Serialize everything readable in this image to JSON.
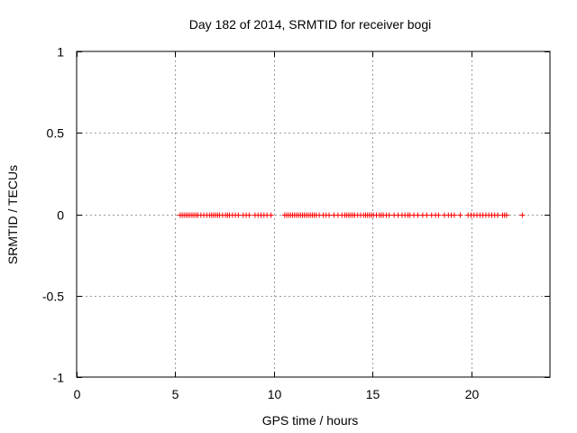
{
  "chart_data": {
    "type": "scatter",
    "title": "Day 182 of 2014, SRMTID for receiver bogi",
    "xlabel": "GPS time / hours",
    "ylabel": "SRMTID / TECUs",
    "xlim": [
      0,
      24
    ],
    "ylim": [
      -1,
      1
    ],
    "grid": true,
    "legend": "none",
    "marker": "plus",
    "color": "#ff0000",
    "x_ticks": [
      0,
      5,
      10,
      15,
      20
    ],
    "x_tick_labels": [
      "0",
      "5",
      "10",
      "15",
      "20"
    ],
    "y_ticks": [
      1,
      0.5,
      0,
      -0.5,
      -1
    ],
    "y_tick_labels": [
      "1",
      "0.5",
      "0",
      "-0.5",
      "-1"
    ],
    "series": [
      {
        "name": "SRMTID",
        "x": [
          5.25,
          5.35,
          5.45,
          5.55,
          5.65,
          5.75,
          5.85,
          5.95,
          6.05,
          6.15,
          6.3,
          6.45,
          6.6,
          6.75,
          6.85,
          6.95,
          7.05,
          7.15,
          7.25,
          7.4,
          7.55,
          7.65,
          7.75,
          7.9,
          8.05,
          8.2,
          8.45,
          8.6,
          8.75,
          9.05,
          9.2,
          9.35,
          9.5,
          9.65,
          9.85,
          10.55,
          10.65,
          10.75,
          10.85,
          10.95,
          11.05,
          11.15,
          11.25,
          11.35,
          11.45,
          11.55,
          11.65,
          11.75,
          11.85,
          11.95,
          12.05,
          12.15,
          12.3,
          12.5,
          12.65,
          12.8,
          13.05,
          13.25,
          13.45,
          13.6,
          13.7,
          13.8,
          13.9,
          14.0,
          14.1,
          14.25,
          14.4,
          14.55,
          14.65,
          14.75,
          14.85,
          14.95,
          15.05,
          15.2,
          15.35,
          15.45,
          15.55,
          15.7,
          15.85,
          16.1,
          16.3,
          16.5,
          16.65,
          16.8,
          16.9,
          17.1,
          17.3,
          17.55,
          17.75,
          18.0,
          18.2,
          18.35,
          18.65,
          18.85,
          19.0,
          19.15,
          19.45,
          19.85,
          20.0,
          20.15,
          20.3,
          20.45,
          20.6,
          20.75,
          20.9,
          21.05,
          21.2,
          21.35,
          21.6,
          21.7,
          21.8,
          22.6
        ],
        "y": [
          0,
          0,
          0,
          0,
          0,
          0,
          0,
          0,
          0,
          0,
          0,
          0,
          0,
          0,
          0,
          0,
          0,
          0,
          0,
          0,
          0,
          0,
          0,
          0,
          0,
          0,
          0,
          0,
          0,
          0,
          0,
          0,
          0,
          0,
          0,
          0,
          0,
          0,
          0,
          0,
          0,
          0,
          0,
          0,
          0,
          0,
          0,
          0,
          0,
          0,
          0,
          0,
          0,
          0,
          0,
          0,
          0,
          0,
          0,
          0,
          0,
          0,
          0,
          0,
          0,
          0,
          0,
          0,
          0,
          0,
          0,
          0,
          0,
          0,
          0,
          0,
          0,
          0,
          0,
          0,
          0,
          0,
          0,
          0,
          0,
          0,
          0,
          0,
          0,
          0,
          0,
          0,
          0,
          0,
          0,
          0,
          0,
          0,
          0,
          0,
          0,
          0,
          0,
          0,
          0,
          0,
          0,
          0,
          0,
          0,
          0,
          0
        ]
      }
    ]
  }
}
